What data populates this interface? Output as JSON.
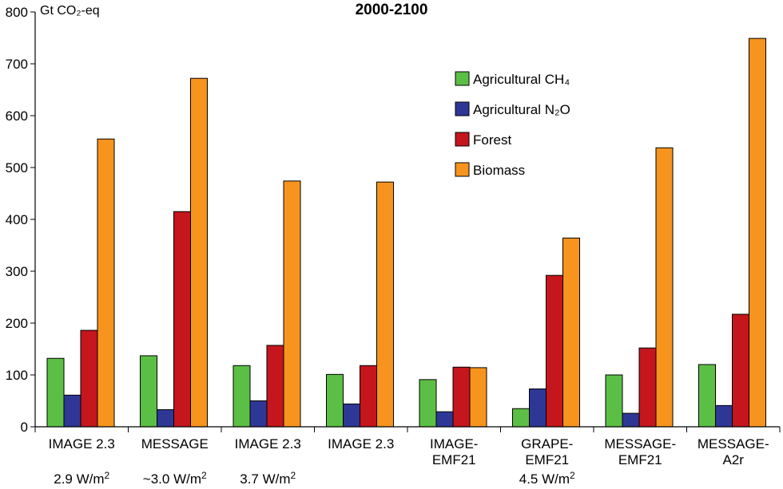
{
  "chart_data": {
    "type": "bar",
    "title": "2000-2100",
    "ylabel": "Gt CO₂-eq",
    "ylim": [
      0,
      800
    ],
    "yticks": [
      0,
      100,
      200,
      300,
      400,
      500,
      600,
      700,
      800
    ],
    "categories": [
      [
        "IMAGE 2.3"
      ],
      [
        "MESSAGE"
      ],
      [
        "IMAGE 2.3"
      ],
      [
        "IMAGE 2.3"
      ],
      [
        "IMAGE-",
        "EMF21"
      ],
      [
        "GRAPE-",
        "EMF21"
      ],
      [
        "MESSAGE-",
        "EMF21"
      ],
      [
        "MESSAGE-",
        "A2r"
      ]
    ],
    "forcing_labels": [
      {
        "category_index": 0,
        "text": "2.9 W/m",
        "sup": "2"
      },
      {
        "category_index": 1,
        "text": "~3.0 W/m",
        "sup": "2"
      },
      {
        "category_index": 2,
        "text": "3.7 W/m",
        "sup": "2"
      },
      {
        "category_index": 5,
        "text": "4.5 W/m",
        "sup": "2"
      }
    ],
    "series": [
      {
        "name": "Agricultural CH₄",
        "color": "#5cbf45",
        "values": [
          132,
          137,
          118,
          101,
          91,
          35,
          100,
          120
        ]
      },
      {
        "name": "Agricultural N₂O",
        "color": "#2f3796",
        "values": [
          61,
          33,
          50,
          44,
          29,
          73,
          26,
          41
        ]
      },
      {
        "name": "Forest",
        "color": "#c4161c",
        "values": [
          186,
          415,
          157,
          118,
          115,
          292,
          152,
          217
        ]
      },
      {
        "name": "Biomass",
        "color": "#f7941d",
        "values": [
          555,
          672,
          474,
          472,
          114,
          364,
          538,
          749
        ]
      }
    ],
    "legend_position": "top-right",
    "grid": false
  }
}
